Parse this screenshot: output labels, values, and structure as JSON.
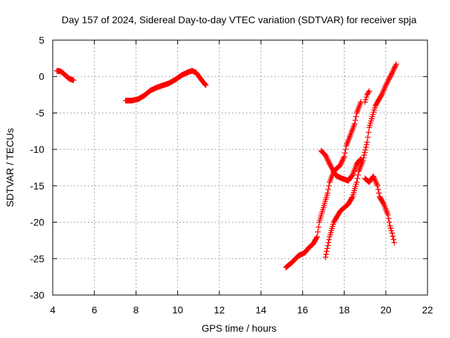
{
  "chart_data": {
    "type": "scatter",
    "title": "Day 157 of 2024, Sidereal Day-to-day VTEC variation (SDTVAR) for receiver spja",
    "xlabel": "GPS time / hours",
    "ylabel": "SDTVAR / TECUs",
    "xlim": [
      4,
      22
    ],
    "ylim": [
      -30,
      5
    ],
    "xticks": [
      "4",
      "6",
      "8",
      "10",
      "12",
      "14",
      "16",
      "18",
      "20",
      "22"
    ],
    "yticks": [
      "5",
      "0",
      "-5",
      "-10",
      "-15",
      "-20",
      "-25",
      "-30"
    ],
    "grid": true,
    "marker": "+",
    "color": "#ff0000",
    "series": [
      {
        "points": [
          [
            4.2,
            0.8
          ],
          [
            4.4,
            0.7
          ],
          [
            4.6,
            0.2
          ],
          [
            4.8,
            -0.3
          ],
          [
            5.0,
            -0.5
          ]
        ]
      },
      {
        "points": [
          [
            7.5,
            -3.3
          ],
          [
            7.8,
            -3.3
          ],
          [
            8.1,
            -3.1
          ],
          [
            8.4,
            -2.6
          ],
          [
            8.7,
            -1.9
          ],
          [
            9.0,
            -1.5
          ],
          [
            9.3,
            -1.2
          ],
          [
            9.6,
            -0.9
          ],
          [
            9.9,
            -0.4
          ],
          [
            10.2,
            0.2
          ],
          [
            10.5,
            0.6
          ],
          [
            10.7,
            0.8
          ],
          [
            10.9,
            0.5
          ],
          [
            11.1,
            -0.3
          ],
          [
            11.35,
            -1.2
          ]
        ]
      },
      {
        "points": [
          [
            15.2,
            -26.2
          ],
          [
            15.5,
            -25.5
          ],
          [
            15.8,
            -24.6
          ],
          [
            16.1,
            -24.2
          ],
          [
            16.3,
            -23.5
          ],
          [
            16.5,
            -23.0
          ],
          [
            16.7,
            -22.0
          ],
          [
            16.8,
            -20.0
          ],
          [
            17.0,
            -18.0
          ],
          [
            17.2,
            -16.0
          ],
          [
            17.3,
            -14.5
          ],
          [
            17.5,
            -13.0
          ],
          [
            17.8,
            -12.2
          ],
          [
            18.0,
            -11.0
          ],
          [
            18.1,
            -9.5
          ],
          [
            18.3,
            -8.0
          ],
          [
            18.5,
            -6.5
          ],
          [
            18.6,
            -5.0
          ],
          [
            18.8,
            -3.5
          ]
        ]
      },
      {
        "points": [
          [
            16.9,
            -10.2
          ],
          [
            17.1,
            -10.8
          ],
          [
            17.3,
            -12.0
          ],
          [
            17.6,
            -13.6
          ],
          [
            17.9,
            -14.0
          ],
          [
            18.2,
            -14.3
          ],
          [
            18.4,
            -13.5
          ],
          [
            18.6,
            -12.0
          ],
          [
            18.8,
            -11.3
          ]
        ]
      },
      {
        "points": [
          [
            17.1,
            -24.8
          ],
          [
            17.3,
            -22.0
          ],
          [
            17.5,
            -20.0
          ],
          [
            17.8,
            -18.5
          ],
          [
            18.0,
            -18.0
          ],
          [
            18.2,
            -17.5
          ],
          [
            18.4,
            -16.5
          ],
          [
            18.6,
            -14.5
          ],
          [
            18.7,
            -13.0
          ],
          [
            18.9,
            -11.5
          ],
          [
            19.1,
            -9.0
          ],
          [
            19.2,
            -7.0
          ],
          [
            19.5,
            -4.0
          ],
          [
            19.8,
            -2.5
          ],
          [
            20.0,
            -1.2
          ],
          [
            20.3,
            0.5
          ],
          [
            20.5,
            1.7
          ]
        ]
      },
      {
        "points": [
          [
            19.0,
            -3.5
          ],
          [
            19.1,
            -2.5
          ],
          [
            19.2,
            -2.0
          ]
        ]
      },
      {
        "points": [
          [
            19.0,
            -14.0
          ],
          [
            19.2,
            -14.5
          ],
          [
            19.4,
            -13.7
          ],
          [
            19.6,
            -15.0
          ],
          [
            19.7,
            -16.5
          ],
          [
            19.9,
            -17.5
          ],
          [
            20.1,
            -19.0
          ],
          [
            20.2,
            -20.5
          ],
          [
            20.3,
            -21.5
          ],
          [
            20.4,
            -22.8
          ]
        ]
      }
    ]
  }
}
